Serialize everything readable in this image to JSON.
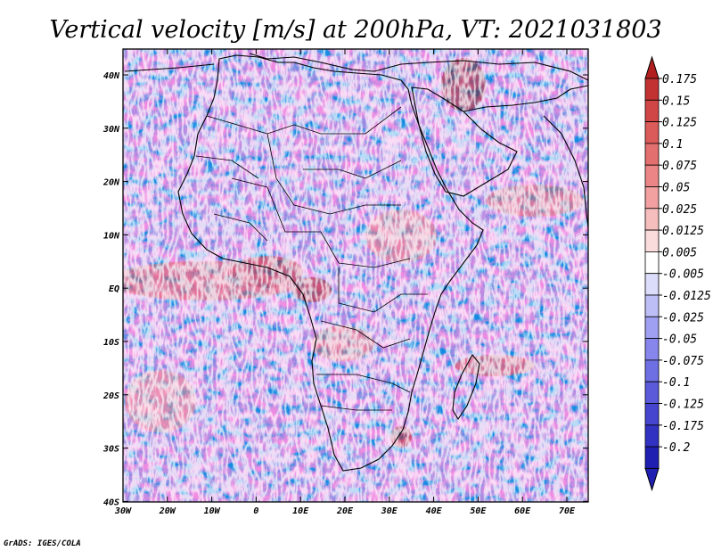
{
  "title": "Vertical velocity [m/s] at 200hPa, VT: 2021031803",
  "credit": "GrADS: IGES/COLA",
  "axes": {
    "lat_labels": [
      "40N",
      "30N",
      "20N",
      "10N",
      "EQ",
      "10S",
      "20S",
      "30S",
      "40S"
    ],
    "lon_labels": [
      "30W",
      "20W",
      "10W",
      "0",
      "10E",
      "20E",
      "30E",
      "40E",
      "50E",
      "60E",
      "70E"
    ]
  },
  "colorbar": {
    "labels": [
      "0.175",
      "0.15",
      "0.125",
      "0.1",
      "0.075",
      "0.05",
      "0.025",
      "0.0125",
      "0.005",
      "-0.005",
      "-0.0125",
      "-0.025",
      "-0.05",
      "-0.075",
      "-0.1",
      "-0.125",
      "-0.175",
      "-0.2"
    ],
    "colors": [
      "#b21f1f",
      "#c23232",
      "#d04545",
      "#db5a5a",
      "#e46f6f",
      "#ec8686",
      "#f2a0a0",
      "#f7bebe",
      "#fbdcdc",
      "#ffffff",
      "#dcdcfb",
      "#bebef7",
      "#a0a0f2",
      "#8686ec",
      "#6f6fe4",
      "#5a5adb",
      "#4545d0",
      "#3232c2",
      "#1f1fb2"
    ]
  },
  "icons": {
    "triangle_up": "arrow-up-icon",
    "triangle_down": "arrow-down-icon"
  }
}
